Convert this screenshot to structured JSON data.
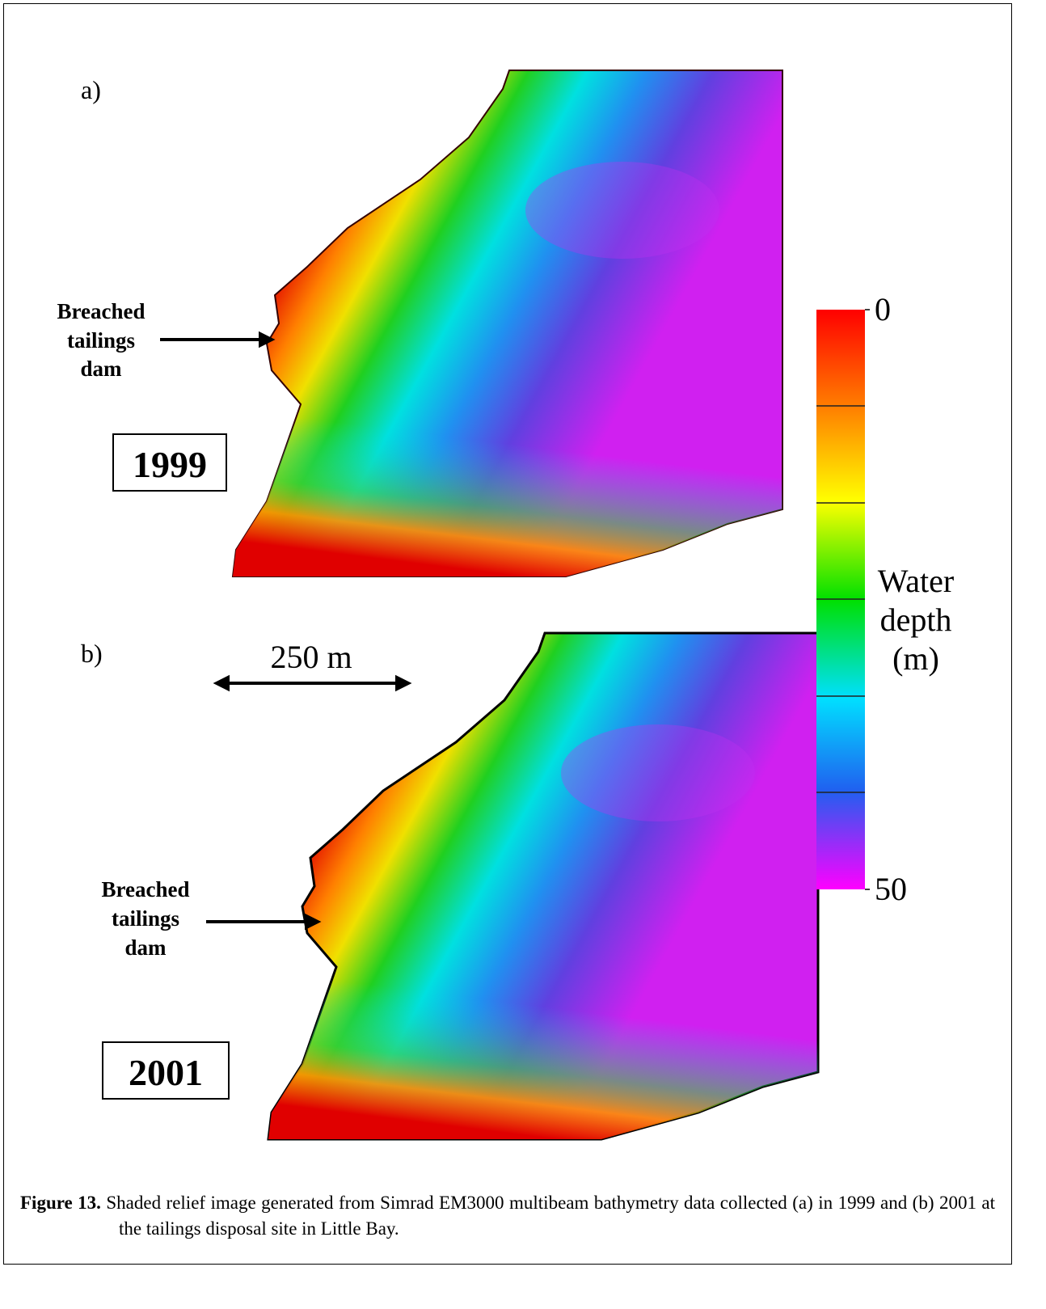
{
  "panels": [
    {
      "label": "a)",
      "year": "1999",
      "annotation": [
        "Breached",
        "tailings",
        "dam"
      ]
    },
    {
      "label": "b)",
      "year": "2001",
      "annotation": [
        "Breached",
        "tailings",
        "dam"
      ]
    }
  ],
  "scale_bar": {
    "label": "250 m"
  },
  "colorbar": {
    "lim": [
      0,
      50
    ],
    "ticks": [
      0,
      50
    ],
    "label": [
      "Water",
      "depth",
      "(m)"
    ]
  },
  "caption": {
    "label": "Figure 13.",
    "text": "Shaded relief image generated from Simrad EM3000 multibeam bathymetry data collected (a) in 1999 and (b) 2001 at the tailings disposal site in Little Bay."
  }
}
